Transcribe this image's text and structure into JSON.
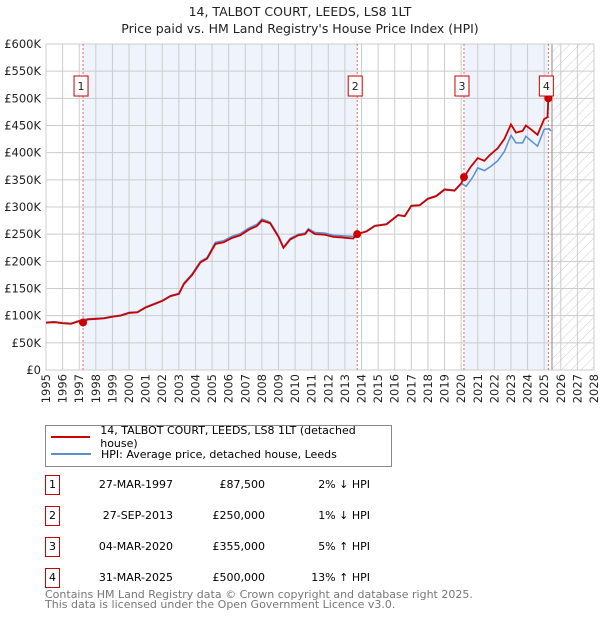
{
  "chart_data": {
    "type": "line",
    "title": "14, TALBOT COURT, LEEDS, LS8 1LT",
    "subtitle": "Price paid vs. HM Land Registry's House Price Index (HPI)",
    "xlim": [
      1995,
      2028
    ],
    "ylim": [
      0,
      600000
    ],
    "x_ticks": [
      "1995",
      "1996",
      "1997",
      "1998",
      "1999",
      "2000",
      "2001",
      "2002",
      "2003",
      "2004",
      "2005",
      "2006",
      "2007",
      "2008",
      "2009",
      "2010",
      "2011",
      "2012",
      "2013",
      "2014",
      "2015",
      "2016",
      "2017",
      "2018",
      "2019",
      "2020",
      "2021",
      "2022",
      "2023",
      "2024",
      "2025",
      "2026",
      "2027",
      "2028"
    ],
    "y_ticks": [
      "£0",
      "£50K",
      "£100K",
      "£150K",
      "£200K",
      "£250K",
      "£300K",
      "£350K",
      "£400K",
      "£450K",
      "£500K",
      "£550K",
      "£600K"
    ],
    "grid": true,
    "forecast_start": 2025.47,
    "shaded_ranges": [
      [
        1997.23,
        2013.74
      ],
      [
        2020.17,
        2025.25
      ]
    ],
    "series": [
      {
        "name": "14, TALBOT COURT, LEEDS, LS8 1LT (detached house)",
        "color": "#cc0000",
        "points": [
          [
            1995,
            87
          ],
          [
            1995.5,
            88
          ],
          [
            1996,
            86
          ],
          [
            1996.5,
            85
          ],
          [
            1997,
            90
          ],
          [
            1997.23,
            87.5
          ],
          [
            1997.5,
            93
          ],
          [
            1998,
            94
          ],
          [
            1998.5,
            95
          ],
          [
            1999,
            98
          ],
          [
            1999.5,
            100
          ],
          [
            2000,
            105
          ],
          [
            2000.5,
            106
          ],
          [
            2001,
            115
          ],
          [
            2001.5,
            121
          ],
          [
            2002,
            127
          ],
          [
            2002.5,
            136
          ],
          [
            2003,
            140
          ],
          [
            2003.3,
            158
          ],
          [
            2003.8,
            175
          ],
          [
            2004.3,
            198
          ],
          [
            2004.7,
            205
          ],
          [
            2005.2,
            232
          ],
          [
            2005.7,
            235
          ],
          [
            2006.2,
            243
          ],
          [
            2006.7,
            248
          ],
          [
            2007.2,
            258
          ],
          [
            2007.7,
            265
          ],
          [
            2008,
            275
          ],
          [
            2008.5,
            270
          ],
          [
            2009,
            245
          ],
          [
            2009.3,
            225
          ],
          [
            2009.7,
            240
          ],
          [
            2010.2,
            248
          ],
          [
            2010.6,
            250
          ],
          [
            2010.8,
            258
          ],
          [
            2011.2,
            250
          ],
          [
            2011.8,
            249
          ],
          [
            2012.3,
            245
          ],
          [
            2012.8,
            244
          ],
          [
            2013.5,
            242
          ],
          [
            2013.74,
            250
          ],
          [
            2014.3,
            255
          ],
          [
            2014.8,
            265
          ],
          [
            2015.5,
            268
          ],
          [
            2016.2,
            285
          ],
          [
            2016.6,
            283
          ],
          [
            2017,
            302
          ],
          [
            2017.5,
            303
          ],
          [
            2018,
            315
          ],
          [
            2018.5,
            320
          ],
          [
            2019,
            332
          ],
          [
            2019.6,
            330
          ],
          [
            2020,
            343
          ],
          [
            2020.17,
            355
          ],
          [
            2020.6,
            375
          ],
          [
            2021,
            390
          ],
          [
            2021.4,
            385
          ],
          [
            2021.7,
            395
          ],
          [
            2022.2,
            408
          ],
          [
            2022.6,
            425
          ],
          [
            2023,
            452
          ],
          [
            2023.3,
            437
          ],
          [
            2023.7,
            440
          ],
          [
            2023.9,
            450
          ],
          [
            2024.2,
            443
          ],
          [
            2024.6,
            433
          ],
          [
            2025,
            462
          ],
          [
            2025.2,
            465
          ],
          [
            2025.25,
            500
          ],
          [
            2025.3,
            500
          ]
        ]
      },
      {
        "name": "HPI: Average price, detached house, Leeds",
        "color": "#5b8fd4",
        "points": [
          [
            1995,
            88
          ],
          [
            1995.5,
            89
          ],
          [
            1996,
            87
          ],
          [
            1996.5,
            86
          ],
          [
            1997,
            91
          ],
          [
            1997.5,
            94
          ],
          [
            1998,
            95
          ],
          [
            1998.5,
            96
          ],
          [
            1999,
            99
          ],
          [
            1999.5,
            101
          ],
          [
            2000,
            106
          ],
          [
            2000.5,
            107
          ],
          [
            2001,
            116
          ],
          [
            2001.5,
            122
          ],
          [
            2002,
            128
          ],
          [
            2002.5,
            137
          ],
          [
            2003,
            141
          ],
          [
            2003.3,
            160
          ],
          [
            2003.8,
            177
          ],
          [
            2004.3,
            200
          ],
          [
            2004.7,
            207
          ],
          [
            2005.2,
            235
          ],
          [
            2005.7,
            238
          ],
          [
            2006.2,
            246
          ],
          [
            2006.7,
            251
          ],
          [
            2007.2,
            261
          ],
          [
            2007.7,
            268
          ],
          [
            2008,
            278
          ],
          [
            2008.5,
            272
          ],
          [
            2009,
            247
          ],
          [
            2009.3,
            226
          ],
          [
            2009.7,
            242
          ],
          [
            2010.2,
            250
          ],
          [
            2010.6,
            252
          ],
          [
            2010.8,
            260
          ],
          [
            2011.2,
            253
          ],
          [
            2011.8,
            252
          ],
          [
            2012.3,
            248
          ],
          [
            2012.8,
            247
          ],
          [
            2013.5,
            246
          ],
          [
            2014,
            253
          ],
          [
            2014.3,
            256
          ],
          [
            2014.8,
            266
          ],
          [
            2015.5,
            269
          ],
          [
            2016.2,
            286
          ],
          [
            2016.6,
            284
          ],
          [
            2017,
            303
          ],
          [
            2017.5,
            304
          ],
          [
            2018,
            316
          ],
          [
            2018.5,
            321
          ],
          [
            2019,
            333
          ],
          [
            2019.6,
            331
          ],
          [
            2020,
            344
          ],
          [
            2020.3,
            338
          ],
          [
            2020.7,
            355
          ],
          [
            2021,
            372
          ],
          [
            2021.4,
            367
          ],
          [
            2021.8,
            375
          ],
          [
            2022.2,
            385
          ],
          [
            2022.6,
            402
          ],
          [
            2023,
            432
          ],
          [
            2023.3,
            418
          ],
          [
            2023.7,
            418
          ],
          [
            2023.9,
            430
          ],
          [
            2024.2,
            422
          ],
          [
            2024.6,
            412
          ],
          [
            2025,
            443
          ],
          [
            2025.3,
            444
          ],
          [
            2025.4,
            440
          ]
        ]
      }
    ],
    "sales": [
      {
        "label": "1",
        "date": "27-MAR-1997",
        "x": 1997.23,
        "price": "£87,500",
        "value": 87500,
        "hpi": "2% ↓ HPI"
      },
      {
        "label": "2",
        "date": "27-SEP-2013",
        "x": 2013.74,
        "price": "£250,000",
        "value": 250000,
        "hpi": "1% ↓ HPI"
      },
      {
        "label": "3",
        "date": "04-MAR-2020",
        "x": 2020.17,
        "price": "£355,000",
        "value": 355000,
        "hpi": "5% ↑ HPI"
      },
      {
        "label": "4",
        "date": "31-MAR-2025",
        "x": 2025.25,
        "price": "£500,000",
        "value": 500000,
        "hpi": "13% ↑ HPI"
      }
    ]
  },
  "footer": {
    "line1": "Contains HM Land Registry data © Crown copyright and database right 2025.",
    "line2": "This data is licensed under the Open Government Licence v3.0."
  }
}
